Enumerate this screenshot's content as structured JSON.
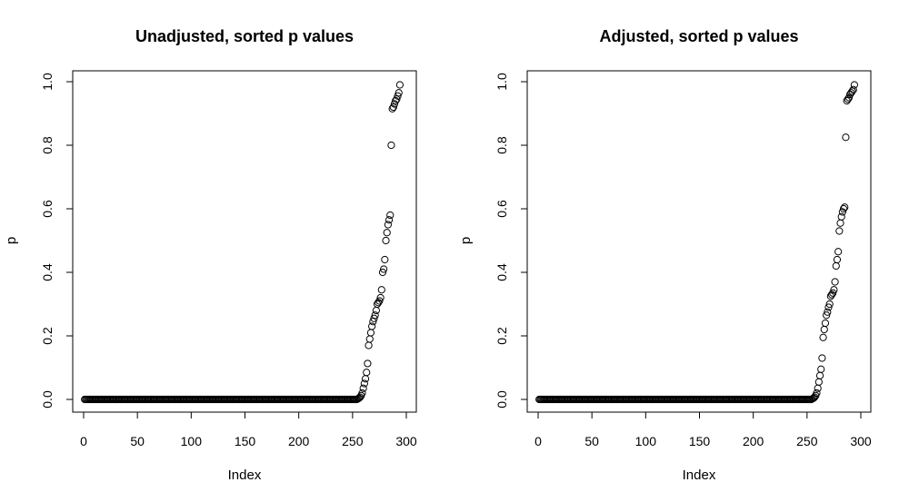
{
  "chart_data": [
    {
      "type": "scatter",
      "title": "Unadjusted, sorted p values",
      "xlabel": "Index",
      "ylabel": "p",
      "xlim": [
        0,
        300
      ],
      "ylim": [
        0,
        1
      ],
      "xticks": [
        "0",
        "50",
        "100",
        "150",
        "200",
        "250",
        "300"
      ],
      "yticks": [
        "0.0",
        "0.2",
        "0.4",
        "0.6",
        "0.8",
        "1.0"
      ],
      "zero_count": 254,
      "tail_values": [
        0.002,
        0.004,
        0.007,
        0.012,
        0.02,
        0.035,
        0.05,
        0.065,
        0.085,
        0.113,
        0.17,
        0.19,
        0.21,
        0.23,
        0.245,
        0.255,
        0.265,
        0.28,
        0.3,
        0.305,
        0.31,
        0.32,
        0.345,
        0.4,
        0.41,
        0.44,
        0.5,
        0.525,
        0.55,
        0.565,
        0.58,
        0.8,
        0.915,
        0.92,
        0.93,
        0.94,
        0.945,
        0.955,
        0.965,
        0.99
      ]
    },
    {
      "type": "scatter",
      "title": "Adjusted, sorted p values",
      "xlabel": "Index",
      "ylabel": "p",
      "xlim": [
        0,
        300
      ],
      "ylim": [
        0,
        1
      ],
      "xticks": [
        "0",
        "50",
        "100",
        "150",
        "200",
        "250",
        "300"
      ],
      "yticks": [
        "0.0",
        "0.2",
        "0.4",
        "0.6",
        "0.8",
        "1.0"
      ],
      "zero_count": 254,
      "tail_values": [
        0.002,
        0.004,
        0.007,
        0.012,
        0.02,
        0.035,
        0.055,
        0.075,
        0.095,
        0.13,
        0.195,
        0.22,
        0.24,
        0.265,
        0.275,
        0.29,
        0.3,
        0.325,
        0.33,
        0.335,
        0.345,
        0.37,
        0.42,
        0.44,
        0.465,
        0.53,
        0.555,
        0.575,
        0.59,
        0.6,
        0.605,
        0.825,
        0.94,
        0.945,
        0.95,
        0.96,
        0.965,
        0.97,
        0.975,
        0.99
      ]
    }
  ]
}
